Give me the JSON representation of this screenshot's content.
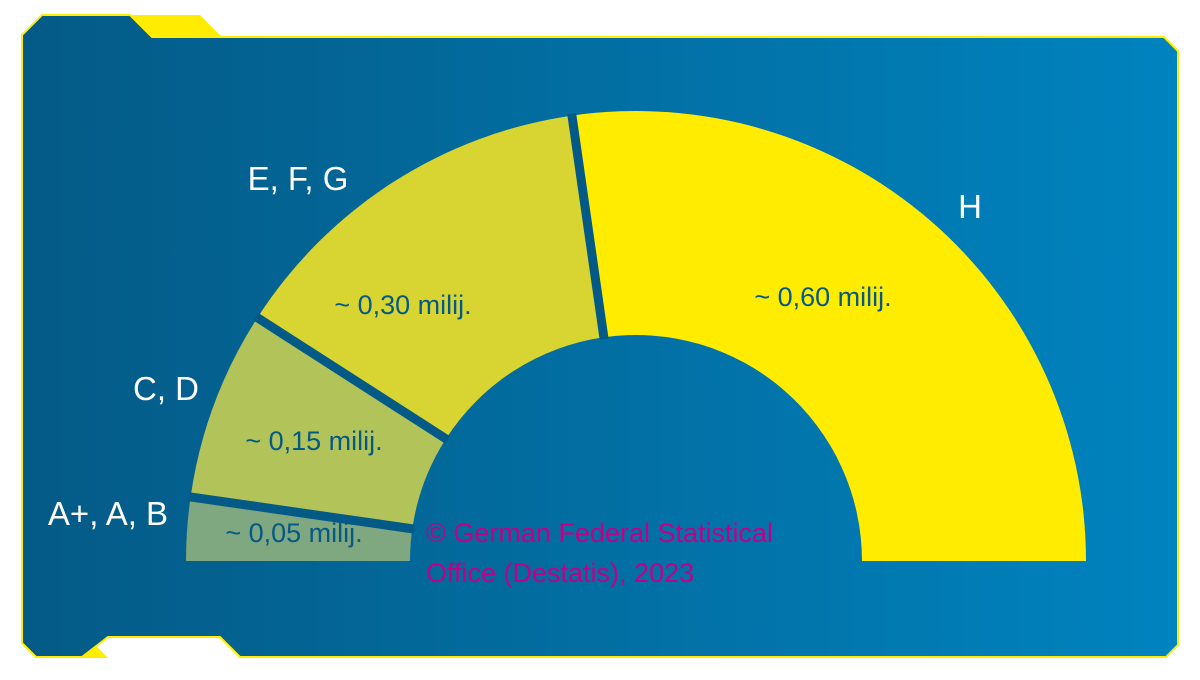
{
  "colors": {
    "panel_start": "#045a86",
    "panel_end": "#0083bf",
    "frame_accent": "#ffec00",
    "segment_ab": "#7fa780",
    "segment_cd": "#b2c35a",
    "segment_efg": "#d8d532",
    "segment_h": "#ffec00",
    "separator": "#045a86",
    "outer_label": "#ffffff",
    "value_label": "#045a86",
    "copyright": "#c1008a"
  },
  "copyright": {
    "line1": "© German Federal Statistical",
    "line2": "Office (Destatis), 2023"
  },
  "chart_data": {
    "type": "pie",
    "shape": "half-donut",
    "unit": "milij.",
    "categories": [
      "A+, A, B",
      "C, D",
      "E, F, G",
      "H"
    ],
    "values": [
      0.05,
      0.15,
      0.3,
      0.6
    ],
    "value_labels": [
      "~ 0,05 milij.",
      "~ 0,15 milij.",
      "~ 0,30 milij.",
      "~ 0,60 milij."
    ],
    "legend": "none"
  }
}
